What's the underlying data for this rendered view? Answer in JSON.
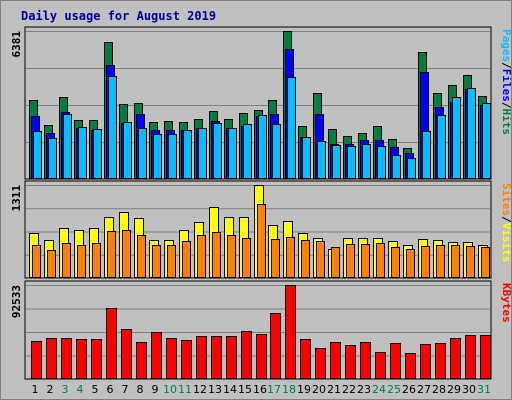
{
  "chart_data": {
    "type": "bar",
    "title": "Daily usage for August 2019",
    "categories": [
      "1",
      "2",
      "3",
      "4",
      "5",
      "6",
      "7",
      "8",
      "9",
      "10",
      "11",
      "12",
      "13",
      "14",
      "15",
      "16",
      "17",
      "18",
      "19",
      "20",
      "21",
      "22",
      "23",
      "24",
      "25",
      "26",
      "27",
      "28",
      "29",
      "30",
      "31"
    ],
    "weekend_days": [
      "3",
      "4",
      "10",
      "11",
      "17",
      "18",
      "24",
      "25",
      "31"
    ],
    "panels": [
      {
        "id": "top",
        "ymax_label": "6381",
        "ymax": 6381,
        "right_labels": [
          "Pages",
          "/",
          "Files",
          "/",
          "Hits"
        ],
        "right_label_colors": [
          "#00c0ff",
          "#000000",
          "#0000ff",
          "#000000",
          "#008040"
        ],
        "series": [
          {
            "name": "Hits",
            "color": "#008040",
            "values": [
              3420,
              2330,
              3540,
              2530,
              2530,
              5910,
              3230,
              3270,
              2460,
              2480,
              2450,
              2600,
              2940,
              2580,
              2830,
              2980,
              3400,
              6380,
              2280,
              3710,
              2140,
              1850,
              1990,
              2270,
              1710,
              1340,
              5460,
              3700,
              4050,
              4500,
              3570
            ]
          },
          {
            "name": "Files",
            "color": "#0000ff",
            "values": [
              2700,
              2000,
              2900,
              2200,
              2100,
              4900,
              2400,
              2800,
              2100,
              2100,
              2100,
              2200,
              2500,
              2200,
              2300,
              2700,
              2800,
              5600,
              1800,
              2800,
              1500,
              1500,
              1700,
              1700,
              1400,
              1100,
              4600,
              3100,
              3300,
              3900,
              3200
            ]
          },
          {
            "name": "Pages",
            "color": "#00c0ff",
            "values": [
              2050,
              1770,
              2810,
              2260,
              2150,
              4460,
              2440,
              2210,
              1950,
              1950,
              2100,
              2180,
              2410,
              2210,
              2370,
              2780,
              2370,
              4390,
              1810,
              1640,
              1450,
              1410,
              1490,
              1410,
              1040,
              920,
              2090,
              2760,
              3530,
              3910,
              3260
            ]
          }
        ]
      },
      {
        "id": "mid",
        "ymax_label": "1311",
        "ymax": 1311,
        "right_labels": [
          "Sites",
          "/",
          "Visits"
        ],
        "right_label_colors": [
          "#ff8000",
          "#000000",
          "#ffff00"
        ],
        "series": [
          {
            "name": "Visits",
            "color": "#ffff00",
            "values": [
              640,
              540,
              700,
              680,
              700,
              860,
              930,
              840,
              540,
              530,
              680,
              790,
              1000,
              860,
              860,
              1311,
              750,
              810,
              640,
              570,
              410,
              560,
              560,
              570,
              520,
              470,
              550,
              530,
              510,
              510,
              460
            ]
          },
          {
            "name": "Sites",
            "color": "#ff8000",
            "values": [
              470,
              400,
              490,
              460,
              500,
              660,
              680,
              600,
              470,
              460,
              520,
              600,
              650,
              600,
              570,
              1050,
              550,
              580,
              530,
              520,
              430,
              480,
              480,
              490,
              430,
              410,
              450,
              460,
              460,
              450,
              440
            ]
          }
        ]
      },
      {
        "id": "bot",
        "ymax_label": "92533",
        "ymax": 92533,
        "right_labels": [
          "KBytes"
        ],
        "right_label_colors": [
          "#ff0000"
        ],
        "series": [
          {
            "name": "KBytes",
            "color": "#ff0000",
            "values": [
              37700,
              39900,
              39900,
              39000,
              39500,
              69500,
              48900,
              36900,
              45900,
              39900,
              38400,
              42000,
              42000,
              42000,
              46800,
              44700,
              64500,
              92533,
              39400,
              30900,
              36900,
              33700,
              36900,
              26300,
              35400,
              25500,
              34100,
              35900,
              40600,
              43800,
              43200
            ]
          }
        ]
      }
    ]
  }
}
